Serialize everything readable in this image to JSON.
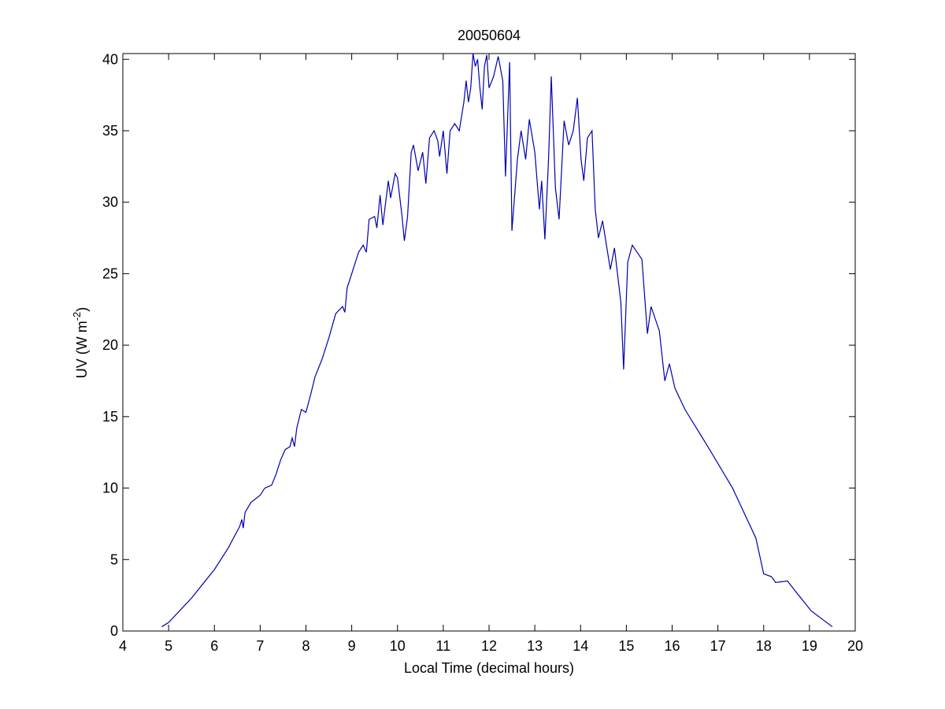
{
  "chart_data": {
    "type": "line",
    "title": "20050604",
    "xlabel": "Local Time (decimal hours)",
    "ylabel_parts": [
      "UV (W m",
      "-2",
      ")"
    ],
    "color": "#0000b0",
    "xlim": [
      4,
      20
    ],
    "xticks": [
      4,
      5,
      6,
      7,
      8,
      9,
      10,
      11,
      12,
      13,
      14,
      15,
      16,
      17,
      18,
      19,
      20
    ],
    "ylim": [
      0,
      40.4
    ],
    "yticks": [
      0,
      5,
      10,
      15,
      20,
      25,
      30,
      35,
      40
    ],
    "x": [
      4.85,
      5.0,
      5.5,
      6.0,
      6.3,
      6.55,
      6.6,
      6.63,
      6.67,
      6.8,
      7.0,
      7.1,
      7.25,
      7.35,
      7.45,
      7.55,
      7.65,
      7.7,
      7.75,
      7.8,
      7.9,
      8.0,
      8.1,
      8.2,
      8.35,
      8.5,
      8.65,
      8.8,
      8.85,
      8.9,
      9.0,
      9.15,
      9.25,
      9.32,
      9.38,
      9.5,
      9.55,
      9.62,
      9.68,
      9.8,
      9.85,
      9.95,
      10.0,
      10.1,
      10.15,
      10.22,
      10.3,
      10.35,
      10.45,
      10.55,
      10.62,
      10.7,
      10.8,
      10.88,
      10.92,
      11.0,
      11.08,
      11.15,
      11.25,
      11.35,
      11.45,
      11.5,
      11.55,
      11.6,
      11.65,
      11.7,
      11.75,
      11.8,
      11.85,
      11.9,
      11.95,
      12.0,
      12.1,
      12.2,
      12.3,
      12.36,
      12.45,
      12.5,
      12.62,
      12.7,
      12.8,
      12.88,
      13.0,
      13.1,
      13.15,
      13.22,
      13.3,
      13.36,
      13.45,
      13.53,
      13.64,
      13.74,
      13.84,
      13.93,
      14.01,
      14.07,
      14.15,
      14.25,
      14.32,
      14.39,
      14.48,
      14.65,
      14.74,
      14.88,
      14.94,
      15.03,
      15.13,
      15.34,
      15.46,
      15.54,
      15.72,
      15.84,
      15.94,
      16.06,
      16.28,
      16.8,
      17.32,
      17.83,
      18.0,
      18.17,
      18.26,
      18.52,
      18.69,
      19.04,
      19.5
    ],
    "values": [
      0.3,
      0.6,
      2.3,
      4.3,
      5.8,
      7.3,
      7.8,
      7.2,
      8.3,
      9.0,
      9.5,
      10.0,
      10.2,
      11.0,
      12.0,
      12.7,
      12.9,
      13.5,
      12.9,
      14.2,
      15.5,
      15.3,
      16.5,
      17.8,
      19.0,
      20.5,
      22.2,
      22.7,
      22.3,
      24.0,
      25.0,
      26.5,
      27.0,
      26.5,
      28.8,
      29.0,
      28.2,
      30.5,
      28.4,
      31.5,
      30.3,
      32.0,
      31.7,
      29.0,
      27.3,
      29.0,
      33.5,
      34.0,
      32.2,
      33.5,
      31.3,
      34.5,
      35.0,
      34.3,
      33.2,
      35.0,
      32.0,
      35.0,
      35.5,
      35.0,
      37.0,
      38.5,
      37.0,
      38.0,
      40.4,
      39.5,
      40.0,
      38.0,
      36.5,
      39.5,
      40.3,
      38.0,
      38.8,
      40.2,
      38.5,
      31.8,
      39.8,
      28.0,
      33.0,
      35.0,
      33.0,
      35.8,
      33.5,
      29.5,
      31.5,
      27.4,
      33.0,
      38.8,
      31.0,
      28.8,
      35.7,
      34.0,
      35.0,
      37.3,
      33.0,
      31.5,
      34.5,
      35.0,
      29.5,
      27.5,
      28.7,
      25.3,
      26.8,
      23.0,
      18.3,
      25.8,
      27.0,
      26.0,
      20.8,
      22.7,
      21.0,
      17.5,
      18.7,
      17.0,
      15.5,
      12.8,
      10.0,
      6.5,
      4.0,
      3.8,
      3.4,
      3.5,
      2.8,
      1.4,
      0.3
    ]
  }
}
